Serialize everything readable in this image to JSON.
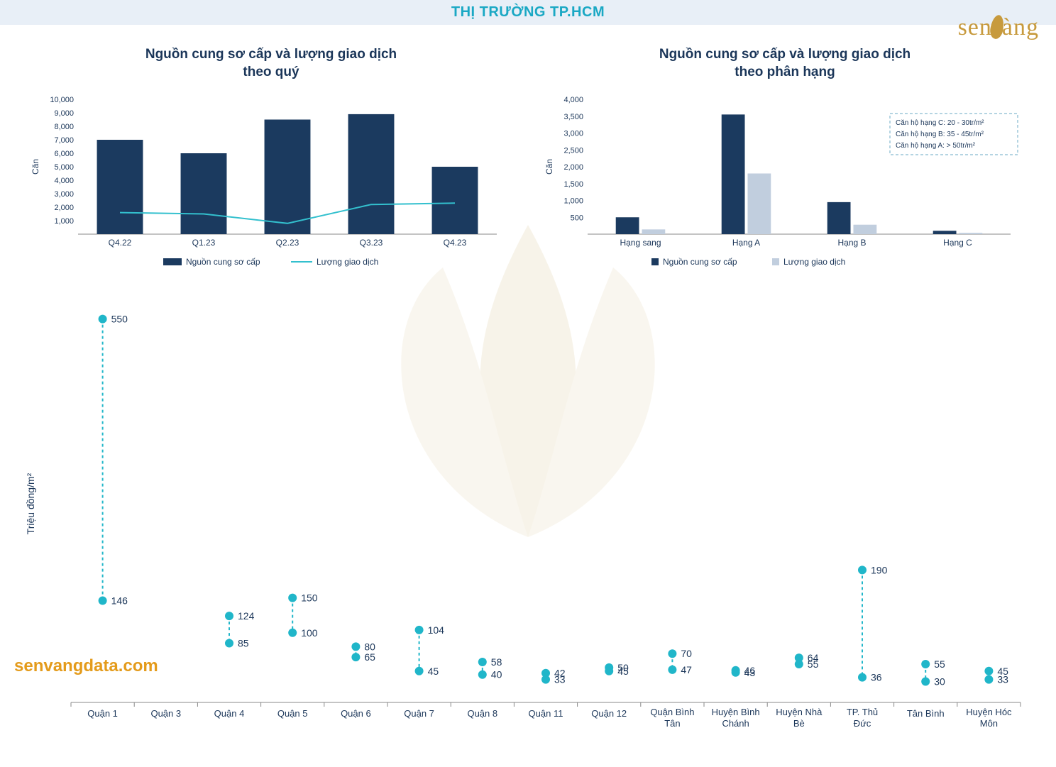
{
  "header": {
    "title": "THỊ TRƯỜNG TP.HCM"
  },
  "logo_text": "sen  àng",
  "watermark": "senvangdata.com",
  "colors": {
    "bar_dark": "#1b3a5f",
    "bar_light": "#c1cede",
    "line": "#33c0ce",
    "dot": "#20b6c9",
    "text_dark": "#1b3659",
    "header_bg": "#e8eff7",
    "header_text": "#1aa8c4",
    "axis": "#888888",
    "legendbox_border": "#6aa9c4"
  },
  "chart1": {
    "type": "bar+line",
    "title": "Nguồn cung sơ cấp và lượng giao dịch\ntheo quý",
    "y_label": "Căn",
    "categories": [
      "Q4.22",
      "Q1.23",
      "Q2.23",
      "Q3.23",
      "Q4.23"
    ],
    "bars": [
      7000,
      6000,
      8500,
      8900,
      5000
    ],
    "line": [
      1600,
      1500,
      800,
      2200,
      2300
    ],
    "ymax": 10000,
    "yticks": [
      "1,000",
      "2,000",
      "3,000",
      "4,000",
      "5,000",
      "6,000",
      "7,000",
      "8,000",
      "9,000",
      "10,000"
    ],
    "legend": [
      "Nguồn cung sơ cấp",
      "Lượng giao dịch"
    ],
    "title_fontsize": 19,
    "tick_fontsize": 11
  },
  "chart2": {
    "type": "grouped-bar",
    "title": "Nguồn cung sơ cấp và lượng giao dịch\ntheo phân hạng",
    "y_label": "Căn",
    "categories": [
      "Hạng sang",
      "Hạng A",
      "Hạng B",
      "Hạng C"
    ],
    "series1": [
      500,
      3550,
      950,
      100
    ],
    "series2": [
      140,
      1800,
      280,
      40
    ],
    "ymax": 4000,
    "yticks": [
      "500",
      "1,000",
      "1,500",
      "2,000",
      "2,500",
      "3,000",
      "3,500",
      "4,000"
    ],
    "legend": [
      "Nguồn cung sơ cấp",
      "Lượng giao dịch"
    ],
    "notebox": [
      "Căn hộ hạng C: 20 - 30tr/m²",
      "Căn hộ hạng B: 35 - 45tr/m²",
      "Căn hộ hạng A: > 50tr/m²"
    ]
  },
  "chart3": {
    "type": "range-dot",
    "y_label": "Triệu đồng/m²",
    "ymax": 570,
    "points": [
      {
        "label": "Quận 1",
        "low": 146,
        "high": 550
      },
      {
        "label": "Quận 3",
        "low": null,
        "high": null
      },
      {
        "label": "Quận 4",
        "low": 85,
        "high": 124
      },
      {
        "label": "Quận 5",
        "low": 100,
        "high": 150
      },
      {
        "label": "Quận 6",
        "low": 65,
        "high": 80
      },
      {
        "label": "Quận 7",
        "low": 45,
        "high": 104
      },
      {
        "label": "Quận 8",
        "low": 40,
        "high": 58
      },
      {
        "label": "Quận 11",
        "low": 33,
        "high": 42
      },
      {
        "label": "Quận 12",
        "low": 45,
        "high": 50
      },
      {
        "label": "Quận Bình Tân",
        "low": 47,
        "high": 70
      },
      {
        "label": "Huyện Bình Chánh",
        "low": 43,
        "high": 46
      },
      {
        "label": "Huyện Nhà Bè",
        "low": 55,
        "high": 64
      },
      {
        "label": "TP. Thủ Đức",
        "low": 36,
        "high": 190
      },
      {
        "label": "Tân Bình",
        "low": 30,
        "high": 55
      },
      {
        "label": "Huyện Hóc Môn",
        "low": 33,
        "high": 45
      }
    ]
  }
}
